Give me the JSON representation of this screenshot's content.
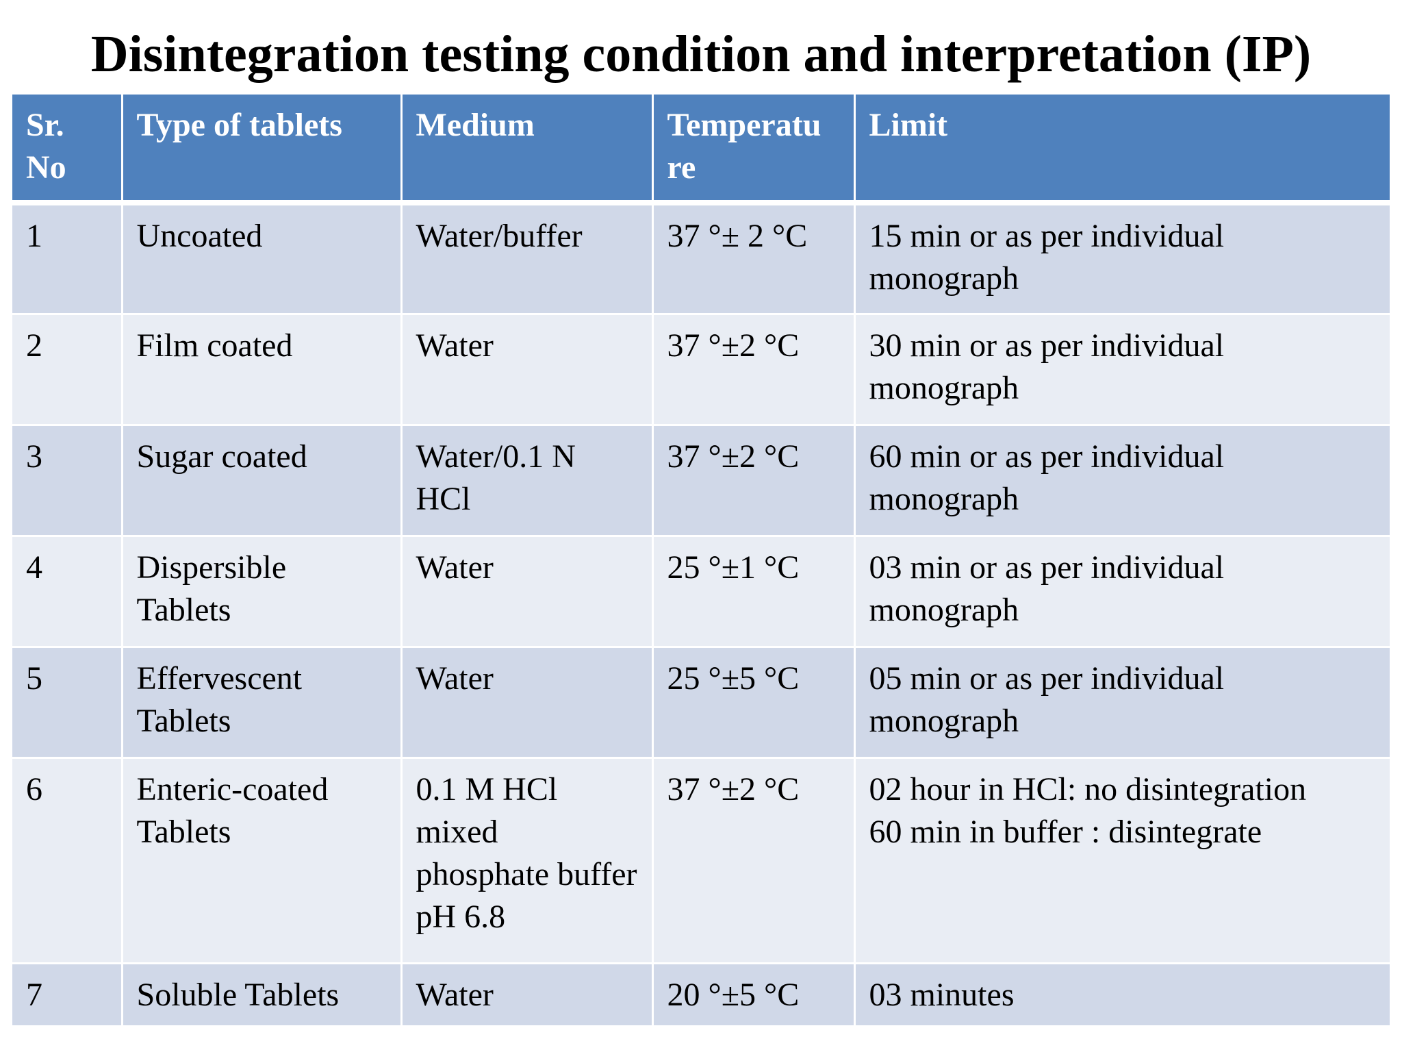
{
  "title": "Disintegration testing condition and interpretation (IP)",
  "table": {
    "headers": [
      "Sr. No",
      "Type of tablets",
      "Medium",
      "Temperatu re",
      "Limit"
    ],
    "rows": [
      {
        "sr": "1",
        "type": "Uncoated",
        "medium": "Water/buffer",
        "temp": "37 °± 2 °C",
        "limit": "15 min or as per individual monograph"
      },
      {
        "sr": "2",
        "type": "Film coated",
        "medium": "Water",
        "temp": "37 °±2 °C",
        "limit": "30 min or as per individual monograph"
      },
      {
        "sr": "3",
        "type": "Sugar coated",
        "medium": "Water/0.1 N HCl",
        "temp": "37 °±2 °C",
        "limit": "60 min or as per individual monograph"
      },
      {
        "sr": "4",
        "type": "Dispersible Tablets",
        "medium": "Water",
        "temp": "25 °±1 °C",
        "limit": "03 min or as per individual monograph"
      },
      {
        "sr": "5",
        "type": "Effervescent Tablets",
        "medium": "Water",
        "temp": "25 °±5 °C",
        "limit": "05 min or as per individual monograph"
      },
      {
        "sr": "6",
        "type": "Enteric-coated Tablets",
        "medium": "0.1 M HCl mixed phosphate buffer pH 6.8",
        "temp": "37 °±2 °C",
        "limit_line1": "02 hour in HCl: no disintegration",
        "limit_line2": "60 min in buffer : disintegrate"
      },
      {
        "sr": "7",
        "type": "Soluble Tablets",
        "medium": "Water",
        "temp": "20 °±5 °C",
        "limit": "03 minutes"
      }
    ]
  },
  "colors": {
    "header_bg": "#4f81bd",
    "row_odd_bg": "#d0d8e8",
    "row_even_bg": "#e9edf4"
  }
}
